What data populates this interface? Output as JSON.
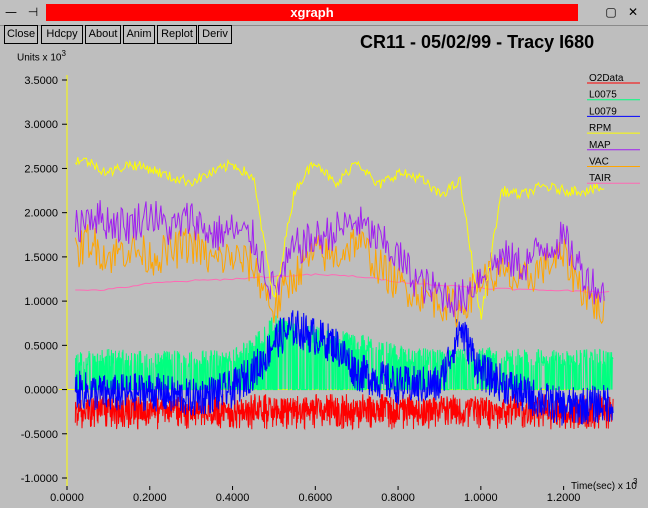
{
  "window": {
    "title": "xgraph",
    "controls": [
      "—",
      "⊣",
      "▢",
      "✕"
    ]
  },
  "toolbar": {
    "buttons": [
      "Close",
      "Hdcpy",
      "About",
      "Anim",
      "Replot",
      "Deriv"
    ]
  },
  "plot_title": "CR11 - 05/02/99 - Tracy I680",
  "y_units": "Units x 10",
  "y_units_exp": "3",
  "x_units": "Time(sec) x 10",
  "x_units_exp": "3",
  "colors": {
    "O2Data": "#ff0000",
    "L0075": "#00ff7f",
    "L0079": "#0000ff",
    "RPM": "#ffff00",
    "MAP": "#a020f0",
    "VAC": "#ffa500",
    "TAIR": "#ff69b4",
    "axis": "#ffff00",
    "background": "#bebebe"
  },
  "chart_data": {
    "type": "line",
    "title": "CR11 - 05/02/99 - Tracy I680",
    "xlabel": "Time(sec) x 10^3",
    "ylabel": "Units x 10^3",
    "xlim": [
      0.0,
      1.3
    ],
    "ylim": [
      -1.0,
      3.5
    ],
    "x_ticks": [
      "0.0000",
      "0.2000",
      "0.4000",
      "0.6000",
      "0.8000",
      "1.0000",
      "1.2000"
    ],
    "y_ticks": [
      "-1.0000",
      "-0.5000",
      "0.0000",
      "0.5000",
      "1.0000",
      "1.5000",
      "2.0000",
      "2.5000",
      "3.0000",
      "3.5000"
    ],
    "legend_position": "right",
    "series": [
      {
        "name": "O2Data",
        "color": "#ff0000",
        "x": [
          0.02,
          0.1,
          0.2,
          0.3,
          0.4,
          0.47,
          0.5,
          0.6,
          0.7,
          0.8,
          0.9,
          1.0,
          1.1,
          1.2,
          1.32
        ],
        "y": [
          -0.22,
          -0.22,
          -0.21,
          -0.22,
          -0.2,
          -0.22,
          -0.2,
          -0.23,
          -0.21,
          -0.22,
          -0.22,
          -0.2,
          -0.22,
          -0.22,
          -0.2
        ]
      },
      {
        "name": "L0075",
        "color": "#00ff7f",
        "x": [
          0.02,
          0.1,
          0.2,
          0.3,
          0.4,
          0.47,
          0.5,
          0.6,
          0.7,
          0.8,
          0.9,
          1.0,
          1.1,
          1.2,
          1.32
        ],
        "y": [
          0.32,
          0.36,
          0.34,
          0.35,
          0.35,
          0.6,
          0.75,
          0.62,
          0.55,
          0.4,
          0.35,
          0.38,
          0.37,
          0.35,
          0.36
        ]
      },
      {
        "name": "L0079",
        "color": "#0000ff",
        "x": [
          0.02,
          0.1,
          0.2,
          0.3,
          0.4,
          0.47,
          0.5,
          0.55,
          0.6,
          0.65,
          0.7,
          0.8,
          0.9,
          0.95,
          1.0,
          1.1,
          1.2,
          1.32
        ],
        "y": [
          0.0,
          -0.05,
          -0.02,
          -0.1,
          0.0,
          0.3,
          0.55,
          0.7,
          0.6,
          0.5,
          0.2,
          0.05,
          0.05,
          0.7,
          0.2,
          -0.05,
          -0.2,
          -0.15
        ]
      },
      {
        "name": "RPM",
        "color": "#ffff00",
        "x": [
          0.02,
          0.05,
          0.1,
          0.15,
          0.2,
          0.25,
          0.3,
          0.35,
          0.4,
          0.45,
          0.5,
          0.55,
          0.6,
          0.65,
          0.7,
          0.75,
          0.8,
          0.85,
          0.9,
          0.95,
          1.0,
          1.05,
          1.1,
          1.15,
          1.2,
          1.25,
          1.3
        ],
        "y": [
          2.6,
          2.58,
          2.45,
          2.55,
          2.5,
          2.4,
          2.35,
          2.45,
          2.55,
          2.4,
          1.0,
          2.25,
          2.6,
          2.3,
          2.6,
          2.3,
          2.45,
          2.4,
          2.2,
          2.35,
          0.8,
          2.25,
          2.2,
          2.3,
          2.25,
          2.25,
          2.28
        ]
      },
      {
        "name": "MAP",
        "color": "#a020f0",
        "x": [
          0.02,
          0.05,
          0.1,
          0.15,
          0.2,
          0.25,
          0.3,
          0.35,
          0.4,
          0.45,
          0.5,
          0.55,
          0.6,
          0.65,
          0.7,
          0.75,
          0.8,
          0.85,
          0.9,
          0.95,
          1.0,
          1.05,
          1.1,
          1.15,
          1.2,
          1.25,
          1.3
        ],
        "y": [
          1.8,
          2.0,
          1.9,
          1.85,
          2.0,
          1.8,
          1.95,
          1.75,
          1.8,
          1.7,
          1.1,
          1.6,
          1.7,
          1.8,
          1.9,
          1.7,
          1.5,
          1.2,
          1.1,
          1.0,
          1.3,
          1.5,
          1.4,
          1.6,
          1.7,
          1.3,
          1.05
        ]
      },
      {
        "name": "VAC",
        "color": "#ffa500",
        "x": [
          0.02,
          0.05,
          0.1,
          0.15,
          0.2,
          0.25,
          0.3,
          0.35,
          0.4,
          0.45,
          0.5,
          0.55,
          0.6,
          0.65,
          0.7,
          0.75,
          0.8,
          0.85,
          0.9,
          0.95,
          1.0,
          1.05,
          1.1,
          1.15,
          1.2,
          1.25,
          1.3
        ],
        "y": [
          1.5,
          1.7,
          1.5,
          1.6,
          1.5,
          1.55,
          1.65,
          1.45,
          1.5,
          1.4,
          0.9,
          1.3,
          1.55,
          1.5,
          1.7,
          1.4,
          1.2,
          1.1,
          1.0,
          0.9,
          1.25,
          1.3,
          1.2,
          1.4,
          1.5,
          1.1,
          0.85
        ]
      },
      {
        "name": "TAIR",
        "color": "#ff69b4",
        "x": [
          0.02,
          0.1,
          0.2,
          0.3,
          0.4,
          0.5,
          0.6,
          0.7,
          0.8,
          0.9,
          1.0,
          1.1,
          1.2,
          1.32
        ],
        "y": [
          1.12,
          1.13,
          1.2,
          1.23,
          1.25,
          1.28,
          1.3,
          1.28,
          1.22,
          1.18,
          1.15,
          1.13,
          1.12,
          1.1
        ]
      }
    ]
  }
}
